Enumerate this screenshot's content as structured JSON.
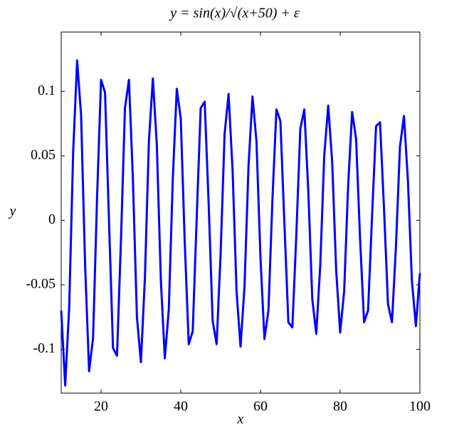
{
  "chart_data": {
    "type": "line",
    "title": "y = sin(x)/√(x+50) + ε",
    "xlabel": "x",
    "ylabel": "y",
    "x": [
      10,
      11,
      12,
      13,
      14,
      15,
      16,
      17,
      18,
      19,
      20,
      21,
      22,
      23,
      24,
      25,
      26,
      27,
      28,
      29,
      30,
      31,
      32,
      33,
      34,
      35,
      36,
      37,
      38,
      39,
      40,
      41,
      42,
      43,
      44,
      45,
      46,
      47,
      48,
      49,
      50,
      51,
      52,
      53,
      54,
      55,
      56,
      57,
      58,
      59,
      60,
      61,
      62,
      63,
      64,
      65,
      66,
      67,
      68,
      69,
      70,
      71,
      72,
      73,
      74,
      75,
      76,
      77,
      78,
      79,
      80,
      81,
      82,
      83,
      84,
      85,
      86,
      87,
      88,
      89,
      90,
      91,
      92,
      93,
      94,
      95,
      96,
      97,
      98,
      99,
      100
    ],
    "series": [
      {
        "color": "#0000ff",
        "values": [
          -0.07,
          -0.128,
          -0.068,
          0.053,
          0.124,
          0.081,
          -0.035,
          -0.117,
          -0.091,
          0.018,
          0.109,
          0.099,
          -0.001,
          -0.099,
          -0.105,
          -0.015,
          0.087,
          0.109,
          0.031,
          -0.075,
          -0.11,
          -0.045,
          0.061,
          0.11,
          0.058,
          -0.046,
          -0.107,
          -0.069,
          0.032,
          0.102,
          0.079,
          -0.017,
          -0.096,
          -0.086,
          0.002,
          0.087,
          0.092,
          0.013,
          -0.078,
          -0.096,
          -0.026,
          0.067,
          0.098,
          0.039,
          -0.055,
          -0.098,
          -0.051,
          0.042,
          0.096,
          0.061,
          -0.029,
          -0.092,
          -0.07,
          0.016,
          0.086,
          0.077,
          -0.002,
          -0.079,
          -0.083,
          -0.011,
          0.071,
          0.086,
          0.023,
          -0.061,
          -0.088,
          -0.035,
          0.05,
          0.089,
          0.045,
          -0.039,
          -0.087,
          -0.055,
          0.027,
          0.084,
          0.063,
          -0.015,
          -0.079,
          -0.07,
          0.003,
          0.073,
          0.076,
          0.009,
          -0.065,
          -0.079,
          -0.02,
          0.057,
          0.081,
          0.031,
          -0.047,
          -0.082,
          -0.041
        ]
      }
    ],
    "xlim": [
      10,
      100
    ],
    "ylim": [
      -0.134,
      0.146
    ],
    "xticks": [
      20,
      40,
      60,
      80,
      100
    ],
    "yticks": [
      -0.1,
      -0.05,
      0,
      0.05,
      0.1
    ],
    "grid": false
  }
}
